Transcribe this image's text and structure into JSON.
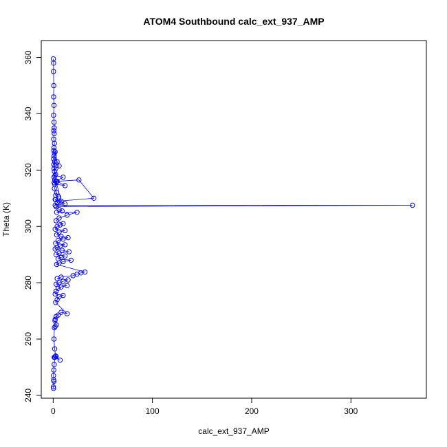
{
  "chart_data": {
    "type": "line",
    "title": "ATOM4 Southbound calc_ext_937_AMP",
    "xlabel": "calc_ext_937_AMP",
    "ylabel": "Theta (K)",
    "xlim": [
      -12,
      376
    ],
    "ylim": [
      239,
      366
    ],
    "xticks": [
      0,
      100,
      200,
      300
    ],
    "yticks": [
      240,
      260,
      280,
      300,
      320,
      340,
      360
    ],
    "grid": false,
    "color": "#0000ff",
    "marker": "open-circle",
    "series": [
      {
        "x": [
          0.2,
          0.4,
          0.3,
          0.6,
          0.5,
          0.8,
          0.4,
          0.9,
          1.1,
          0.7,
          1.0,
          0.5,
          1.3,
          0.8,
          0.6,
          1.2,
          0.9,
          0.4,
          1.5,
          0.7,
          2.0,
          0.9,
          1.2,
          2.5,
          0.8,
          1.6,
          3.2,
          1.0,
          2.0,
          4.0,
          6.0,
          1.8,
          10.0,
          3.0,
          1.5,
          12.0,
          4.0,
          1.2,
          3.5,
          2.5,
          5.5,
          2.0,
          8.0,
          3.0,
          26.0,
          41.0,
          6.0,
          4.0,
          2.5,
          12.0,
          2.0,
          362.0,
          3.0,
          6.0,
          9.0,
          3.5,
          24.0,
          14.0,
          6.0,
          3.0,
          10.0,
          7.0,
          4.0,
          2.0,
          12.0,
          6.0,
          3.5,
          8.0,
          15.0,
          10.0,
          5.0,
          2.5,
          12.0,
          7.0,
          4.0,
          2.0,
          9.0,
          16.0,
          6.0,
          3.0,
          12.0,
          8.0,
          5.0,
          18.0,
          10.0,
          6.0,
          3.5,
          32.0,
          28.0,
          24.0,
          20.0,
          8.0,
          4.0,
          15.0,
          10.0,
          6.0,
          3.0,
          14.0,
          8.0,
          5.0,
          3.0,
          2.0,
          10.0,
          6.0,
          4.0,
          2.5,
          14.0,
          8.0,
          5.0,
          3.0,
          2.0,
          1.8,
          3.2,
          2.0,
          1.2,
          0.8,
          1.5,
          2.4,
          1.0,
          3.0,
          1.4,
          7.0,
          1.8,
          1.0,
          0.6,
          0.3,
          0.5,
          0.8,
          0.2,
          0.4
        ],
        "y": [
          359.5,
          358.0,
          355.0,
          350.0,
          346.0,
          343.0,
          339.5,
          337.0,
          335.0,
          334.0,
          333.0,
          331.0,
          329.5,
          328.0,
          327.0,
          326.0,
          325.0,
          324.0,
          323.0,
          322.0,
          321.5,
          320.5,
          319.5,
          318.5,
          317.5,
          316.5,
          316.0,
          315.5,
          326.5,
          323.0,
          321.5,
          318.0,
          317.5,
          316.0,
          315.0,
          314.5,
          316.0,
          313.5,
          312.0,
          311.0,
          310.5,
          309.5,
          309.0,
          316.0,
          316.5,
          310.0,
          309.0,
          308.5,
          309.5,
          308.0,
          307.5,
          307.5,
          307.0,
          306.0,
          305.5,
          305.0,
          305.0,
          304.0,
          303.0,
          302.0,
          301.0,
          300.5,
          300.0,
          299.0,
          298.5,
          298.0,
          297.0,
          296.5,
          296.0,
          295.5,
          295.0,
          294.0,
          293.5,
          293.0,
          292.5,
          292.0,
          291.5,
          291.0,
          290.5,
          290.0,
          289.5,
          289.0,
          288.5,
          288.0,
          287.5,
          287.0,
          286.5,
          283.8,
          283.5,
          283.0,
          282.5,
          282.0,
          281.5,
          281.0,
          280.5,
          280.0,
          279.5,
          279.0,
          278.5,
          278.0,
          277.0,
          276.0,
          275.5,
          275.0,
          274.0,
          273.0,
          269.0,
          269.5,
          268.5,
          268.0,
          267.0,
          266.5,
          265.0,
          264.5,
          264.0,
          260.0,
          256.5,
          254.0,
          253.5,
          253.8,
          253.5,
          252.5,
          253.5,
          251.0,
          249.0,
          247.0,
          245.5,
          245.0,
          243.0,
          242.5
        ]
      }
    ]
  }
}
